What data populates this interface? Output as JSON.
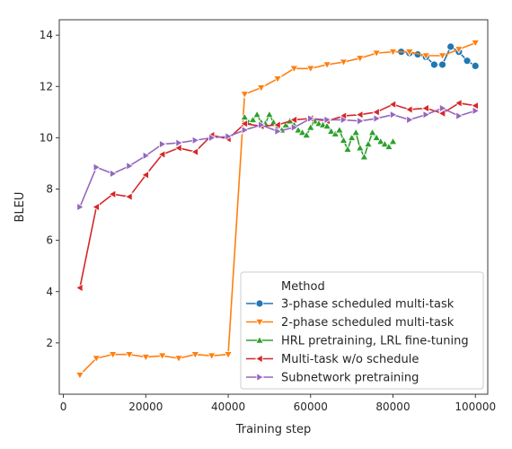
{
  "chart_data": {
    "type": "line",
    "title": "",
    "xlabel": "Training step",
    "ylabel": "BLEU",
    "xlim": [
      -1000,
      103000
    ],
    "ylim": [
      0,
      14.6
    ],
    "xticks": [
      0,
      20000,
      40000,
      60000,
      80000,
      100000
    ],
    "xtick_labels": [
      "0",
      "20000",
      "40000",
      "60000",
      "80000",
      "100000"
    ],
    "yticks": [
      2,
      4,
      6,
      8,
      10,
      12,
      14
    ],
    "ytick_labels": [
      "2",
      "4",
      "6",
      "8",
      "10",
      "12",
      "14"
    ],
    "grid": false,
    "legend": {
      "title": "Method",
      "placement": "lower-right"
    },
    "series": [
      {
        "name": "3-phase scheduled multi-task",
        "color": "#1f77b4",
        "marker": "circle",
        "points": [
          [
            82000,
            13.35
          ],
          [
            84000,
            13.3
          ],
          [
            86000,
            13.25
          ],
          [
            88000,
            13.15
          ],
          [
            90000,
            12.85
          ],
          [
            92000,
            12.85
          ],
          [
            94000,
            13.55
          ],
          [
            96000,
            13.35
          ],
          [
            98000,
            13.0
          ],
          [
            100000,
            12.8
          ]
        ]
      },
      {
        "name": "2-phase scheduled multi-task",
        "color": "#ff7f0e",
        "marker": "triangle-down",
        "points": [
          [
            4000,
            0.75
          ],
          [
            8000,
            1.4
          ],
          [
            12000,
            1.55
          ],
          [
            16000,
            1.55
          ],
          [
            20000,
            1.45
          ],
          [
            24000,
            1.5
          ],
          [
            28000,
            1.4
          ],
          [
            32000,
            1.55
          ],
          [
            36000,
            1.5
          ],
          [
            40000,
            1.55
          ],
          [
            44000,
            11.7
          ],
          [
            48000,
            11.95
          ],
          [
            52000,
            12.3
          ],
          [
            56000,
            12.7
          ],
          [
            60000,
            12.7
          ],
          [
            64000,
            12.85
          ],
          [
            68000,
            12.95
          ],
          [
            72000,
            13.1
          ],
          [
            76000,
            13.3
          ],
          [
            80000,
            13.35
          ],
          [
            84000,
            13.35
          ],
          [
            88000,
            13.2
          ],
          [
            92000,
            13.2
          ],
          [
            96000,
            13.45
          ],
          [
            100000,
            13.7
          ]
        ]
      },
      {
        "name": "HRL pretraining, LRL fine-tuning",
        "color": "#2ca02c",
        "marker": "triangle-up",
        "points": [
          [
            44000,
            10.8
          ],
          [
            45000,
            10.6
          ],
          [
            46000,
            10.7
          ],
          [
            47000,
            10.9
          ],
          [
            48000,
            10.6
          ],
          [
            49000,
            10.55
          ],
          [
            50000,
            10.9
          ],
          [
            51000,
            10.6
          ],
          [
            52000,
            10.45
          ],
          [
            53000,
            10.3
          ],
          [
            54000,
            10.5
          ],
          [
            55000,
            10.65
          ],
          [
            56000,
            10.5
          ],
          [
            57000,
            10.3
          ],
          [
            58000,
            10.2
          ],
          [
            59000,
            10.1
          ],
          [
            60000,
            10.4
          ],
          [
            61000,
            10.65
          ],
          [
            62000,
            10.55
          ],
          [
            63000,
            10.5
          ],
          [
            64000,
            10.45
          ],
          [
            65000,
            10.25
          ],
          [
            66000,
            10.15
          ],
          [
            67000,
            10.3
          ],
          [
            68000,
            9.9
          ],
          [
            69000,
            9.55
          ],
          [
            70000,
            10.0
          ],
          [
            71000,
            10.2
          ],
          [
            72000,
            9.6
          ],
          [
            73000,
            9.25
          ],
          [
            74000,
            9.75
          ],
          [
            75000,
            10.2
          ],
          [
            76000,
            10.0
          ],
          [
            77000,
            9.85
          ],
          [
            78000,
            9.75
          ],
          [
            79000,
            9.65
          ],
          [
            80000,
            9.85
          ]
        ]
      },
      {
        "name": "Multi-task w/o schedule",
        "color": "#d62728",
        "marker": "triangle-left",
        "points": [
          [
            4000,
            4.15
          ],
          [
            8000,
            7.3
          ],
          [
            12000,
            7.8
          ],
          [
            16000,
            7.7
          ],
          [
            20000,
            8.55
          ],
          [
            24000,
            9.35
          ],
          [
            28000,
            9.6
          ],
          [
            32000,
            9.45
          ],
          [
            36000,
            10.1
          ],
          [
            40000,
            9.95
          ],
          [
            44000,
            10.55
          ],
          [
            48000,
            10.45
          ],
          [
            52000,
            10.5
          ],
          [
            56000,
            10.7
          ],
          [
            60000,
            10.75
          ],
          [
            64000,
            10.65
          ],
          [
            68000,
            10.85
          ],
          [
            72000,
            10.9
          ],
          [
            76000,
            11.0
          ],
          [
            80000,
            11.3
          ],
          [
            84000,
            11.1
          ],
          [
            88000,
            11.15
          ],
          [
            92000,
            10.95
          ],
          [
            96000,
            11.35
          ],
          [
            100000,
            11.25
          ]
        ]
      },
      {
        "name": "Subnetwork pretraining",
        "color": "#9467bd",
        "marker": "triangle-right",
        "points": [
          [
            4000,
            7.3
          ],
          [
            8000,
            8.85
          ],
          [
            12000,
            8.6
          ],
          [
            16000,
            8.9
          ],
          [
            20000,
            9.3
          ],
          [
            24000,
            9.75
          ],
          [
            28000,
            9.8
          ],
          [
            32000,
            9.9
          ],
          [
            36000,
            10.0
          ],
          [
            40000,
            10.05
          ],
          [
            44000,
            10.3
          ],
          [
            48000,
            10.5
          ],
          [
            52000,
            10.25
          ],
          [
            56000,
            10.4
          ],
          [
            60000,
            10.75
          ],
          [
            64000,
            10.7
          ],
          [
            68000,
            10.7
          ],
          [
            72000,
            10.65
          ],
          [
            76000,
            10.75
          ],
          [
            80000,
            10.9
          ],
          [
            84000,
            10.7
          ],
          [
            88000,
            10.9
          ],
          [
            92000,
            11.15
          ],
          [
            96000,
            10.85
          ],
          [
            100000,
            11.05
          ]
        ]
      }
    ]
  }
}
